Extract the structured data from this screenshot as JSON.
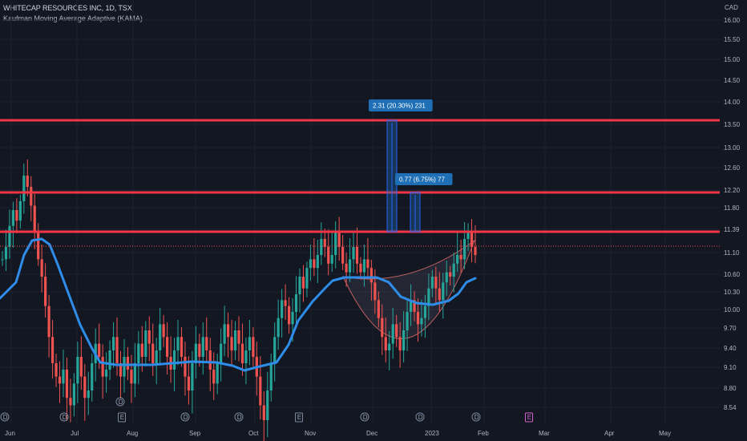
{
  "header": {
    "symbol_line": "WHITECAP RESOURCES INC, 1D, TSX",
    "indicator_line": "Kaufman Moving Average Adaptive (KAMA)"
  },
  "price_axis": {
    "currency": "CAD",
    "ticks": [
      "16.00",
      "15.50",
      "15.00",
      "14.50",
      "14.00",
      "13.50",
      "13.00",
      "12.60",
      "12.20",
      "11.80",
      "11.39",
      "11.10",
      "10.60",
      "10.30",
      "10.00",
      "9.70",
      "9.40",
      "9.10",
      "8.80",
      "8.54"
    ],
    "current_price": "11.13",
    "countdown": "01:07:17"
  },
  "time_axis": {
    "labels": [
      "Jun",
      "Jul",
      "Aug",
      "Sep",
      "Oct",
      "Nov",
      "Dec",
      "2023",
      "Feb",
      "Mar",
      "Apr",
      "May"
    ]
  },
  "levels": [
    {
      "price_label": "13.63",
      "color": "#f23645"
    },
    {
      "price_label": "12.15",
      "color": "#f23645"
    },
    {
      "price_label": "11.39",
      "color": "#f23645"
    }
  ],
  "measures": [
    {
      "text": "2.31 (20.30%) 231"
    },
    {
      "text": "0.77 (6.75%) 77"
    }
  ],
  "event_markers": [
    "D",
    "D",
    "E",
    "D",
    "D",
    "E",
    "D",
    "D",
    "E",
    "D",
    "E"
  ],
  "colors": {
    "background": "#131722",
    "up": "#26a69a",
    "down": "#ef5350",
    "kama": "#2f8dea",
    "level": "#f23645",
    "measure": "#1e6fb6"
  }
}
